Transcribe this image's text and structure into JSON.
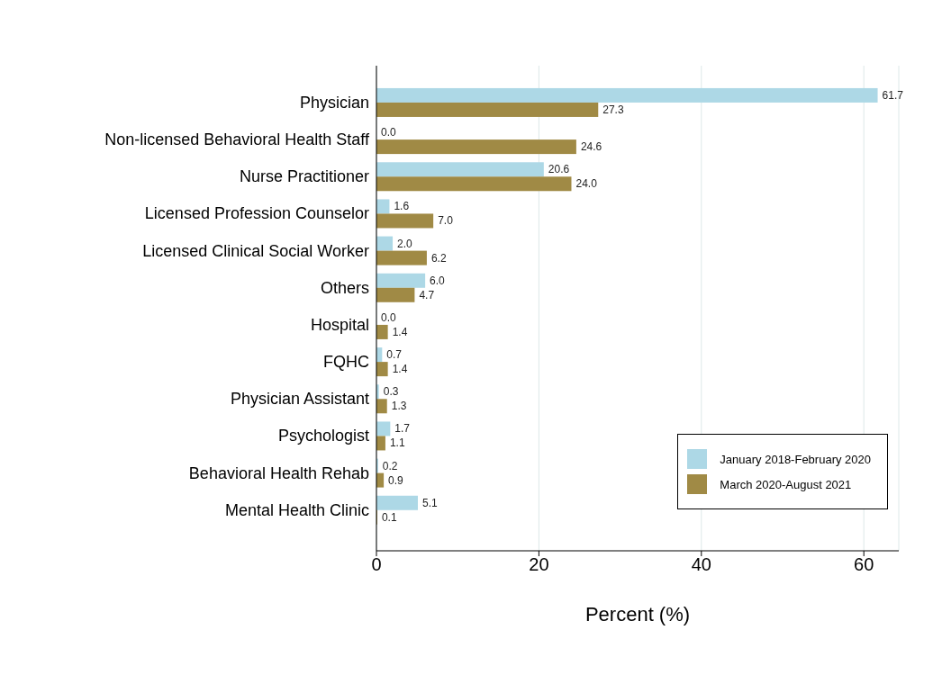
{
  "chart_data": {
    "type": "bar",
    "orientation": "horizontal",
    "xlabel": "Percent (%)",
    "categories": [
      "Physician",
      "Non-licensed Behavioral Health Staff",
      "Nurse Practitioner",
      "Licensed Profession Counselor",
      "Licensed Clinical Social Worker",
      "Others",
      "Hospital",
      "FQHC",
      "Physician Assistant",
      "Psychologist",
      "Behavioral Health Rehab",
      "Mental Health Clinic"
    ],
    "series": [
      {
        "name": "January 2018-February 2020",
        "color": "#add8e6",
        "values": [
          61.7,
          0.0,
          20.6,
          1.6,
          2.0,
          6.0,
          0.0,
          0.7,
          0.3,
          1.7,
          0.2,
          5.1
        ],
        "value_labels": [
          "61.7",
          "0.0",
          "20.6",
          "1.6",
          "2.0",
          "6.0",
          "0.0",
          "0.7",
          "0.3",
          "1.7",
          "0.2",
          "5.1"
        ]
      },
      {
        "name": "March 2020-August 2021",
        "color": "#a08a45",
        "values": [
          27.3,
          24.6,
          24.0,
          7.0,
          6.2,
          4.7,
          1.4,
          1.4,
          1.3,
          1.1,
          0.9,
          0.1
        ],
        "value_labels": [
          "27.3",
          "24.6",
          "24.0",
          "7.0",
          "6.2",
          "4.7",
          "1.4",
          "1.4",
          "1.3",
          "1.1",
          "0.9",
          "0.1"
        ]
      }
    ],
    "xlim": [
      0,
      64.3
    ],
    "xticks": [
      0,
      20,
      40,
      60
    ],
    "grid": "x",
    "legend": "bottom right"
  }
}
